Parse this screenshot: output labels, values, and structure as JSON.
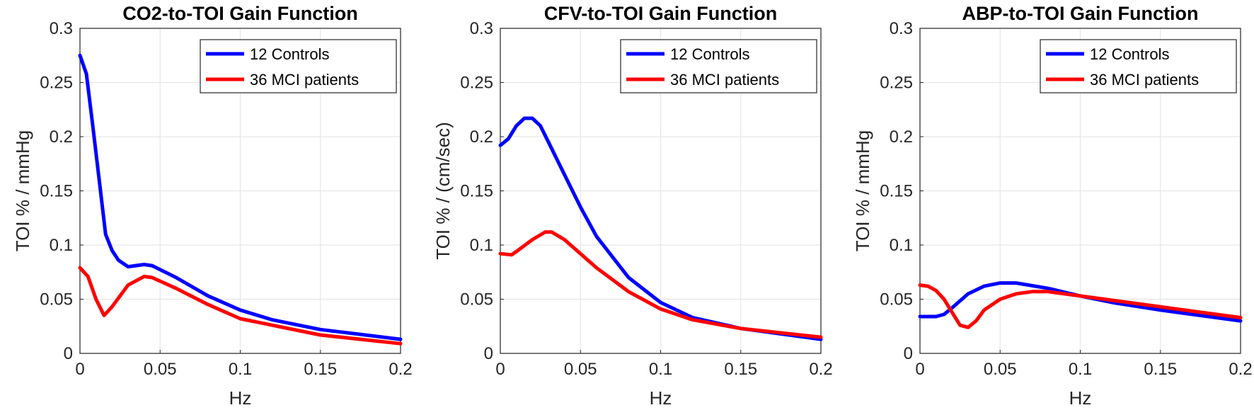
{
  "chart_data": [
    {
      "type": "line",
      "title": "CO2-to-TOI Gain Function",
      "xlabel": "Hz",
      "ylabel": "TOI % / mmHg",
      "xlim": [
        0,
        0.2
      ],
      "ylim": [
        0,
        0.3
      ],
      "xticks": [
        "0",
        "0.05",
        "0.1",
        "0.15",
        "0.2"
      ],
      "yticks": [
        "0",
        "0.05",
        "0.1",
        "0.15",
        "0.2",
        "0.25",
        "0.3"
      ],
      "grid": true,
      "legend_position": "top-right",
      "series": [
        {
          "name": "12 Controls",
          "color": "#0000ff",
          "x": [
            0,
            0.004,
            0.008,
            0.012,
            0.016,
            0.02,
            0.024,
            0.03,
            0.04,
            0.045,
            0.06,
            0.08,
            0.1,
            0.12,
            0.15,
            0.2
          ],
          "y": [
            0.275,
            0.258,
            0.21,
            0.16,
            0.11,
            0.095,
            0.086,
            0.08,
            0.082,
            0.081,
            0.07,
            0.053,
            0.04,
            0.031,
            0.022,
            0.013
          ]
        },
        {
          "name": "36 MCI patients",
          "color": "#ff0000",
          "x": [
            0,
            0.005,
            0.01,
            0.015,
            0.02,
            0.03,
            0.04,
            0.045,
            0.06,
            0.08,
            0.1,
            0.15,
            0.2
          ],
          "y": [
            0.079,
            0.071,
            0.05,
            0.035,
            0.043,
            0.063,
            0.071,
            0.07,
            0.06,
            0.045,
            0.032,
            0.017,
            0.009
          ]
        }
      ]
    },
    {
      "type": "line",
      "title": "CFV-to-TOI Gain Function",
      "xlabel": "Hz",
      "ylabel": "TOI % / (cm/sec)",
      "xlim": [
        0,
        0.2
      ],
      "ylim": [
        0,
        0.3
      ],
      "xticks": [
        "0",
        "0.05",
        "0.1",
        "0.15",
        "0.2"
      ],
      "yticks": [
        "0",
        "0.05",
        "0.1",
        "0.15",
        "0.2",
        "0.25",
        "0.3"
      ],
      "grid": true,
      "legend_position": "top-right",
      "series": [
        {
          "name": "12 Controls",
          "color": "#0000ff",
          "x": [
            0,
            0.005,
            0.01,
            0.015,
            0.02,
            0.025,
            0.03,
            0.04,
            0.05,
            0.06,
            0.08,
            0.1,
            0.12,
            0.15,
            0.2
          ],
          "y": [
            0.192,
            0.198,
            0.21,
            0.217,
            0.217,
            0.21,
            0.195,
            0.165,
            0.135,
            0.108,
            0.07,
            0.047,
            0.033,
            0.023,
            0.013
          ]
        },
        {
          "name": "36 MCI patients",
          "color": "#ff0000",
          "x": [
            0,
            0.007,
            0.01,
            0.02,
            0.028,
            0.032,
            0.04,
            0.05,
            0.06,
            0.08,
            0.1,
            0.12,
            0.15,
            0.2
          ],
          "y": [
            0.092,
            0.091,
            0.094,
            0.105,
            0.112,
            0.112,
            0.105,
            0.092,
            0.079,
            0.057,
            0.041,
            0.031,
            0.023,
            0.015
          ]
        }
      ]
    },
    {
      "type": "line",
      "title": "ABP-to-TOI Gain Function",
      "xlabel": "Hz",
      "ylabel": "TOI % / mmHg",
      "xlim": [
        0,
        0.2
      ],
      "ylim": [
        0,
        0.3
      ],
      "xticks": [
        "0",
        "0.05",
        "0.1",
        "0.15",
        "0.2"
      ],
      "yticks": [
        "0",
        "0.05",
        "0.1",
        "0.15",
        "0.2",
        "0.25",
        "0.3"
      ],
      "grid": true,
      "legend_position": "top-right",
      "series": [
        {
          "name": "12 Controls",
          "color": "#0000ff",
          "x": [
            0,
            0.01,
            0.015,
            0.02,
            0.03,
            0.04,
            0.05,
            0.06,
            0.08,
            0.1,
            0.12,
            0.15,
            0.2
          ],
          "y": [
            0.034,
            0.034,
            0.036,
            0.042,
            0.055,
            0.062,
            0.065,
            0.065,
            0.06,
            0.053,
            0.047,
            0.04,
            0.03
          ]
        },
        {
          "name": "36 MCI patients",
          "color": "#ff0000",
          "x": [
            0,
            0.005,
            0.01,
            0.015,
            0.02,
            0.025,
            0.03,
            0.035,
            0.04,
            0.05,
            0.06,
            0.07,
            0.08,
            0.1,
            0.15,
            0.2
          ],
          "y": [
            0.063,
            0.062,
            0.058,
            0.05,
            0.038,
            0.026,
            0.024,
            0.03,
            0.04,
            0.05,
            0.055,
            0.057,
            0.057,
            0.053,
            0.043,
            0.033
          ]
        }
      ]
    }
  ]
}
